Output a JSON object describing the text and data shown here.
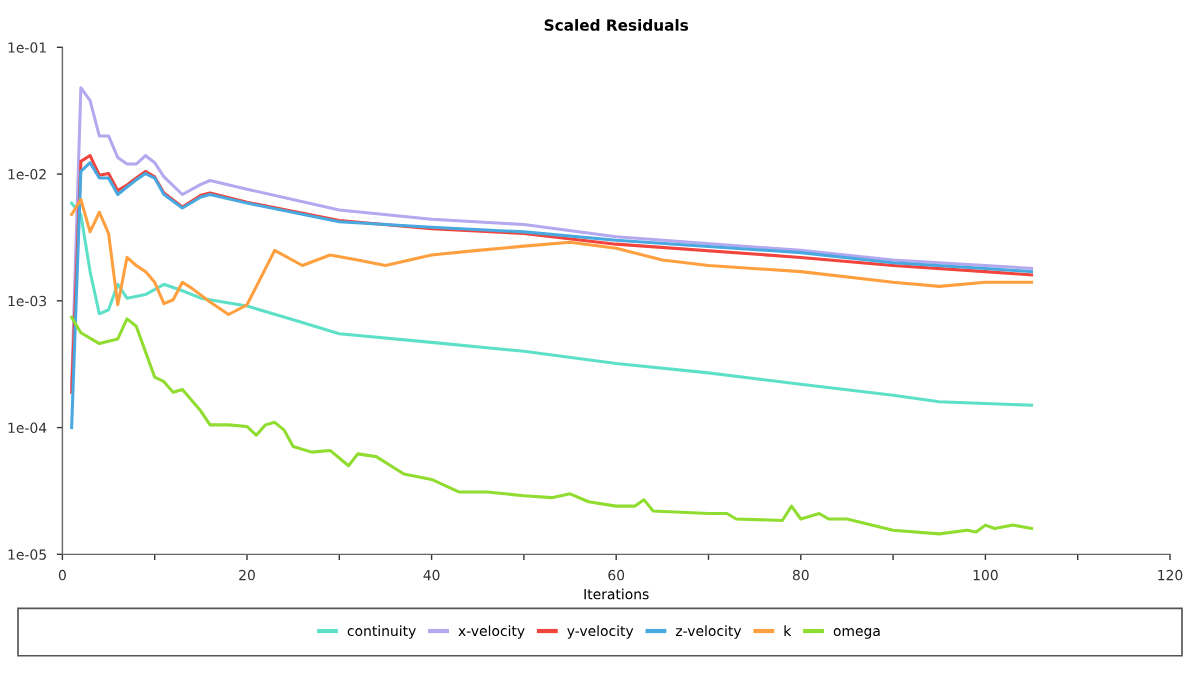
{
  "chart_data": {
    "type": "line",
    "title": "Scaled Residuals",
    "xlabel": "Iterations",
    "xlim": [
      0,
      120
    ],
    "xticks": [
      0,
      {
        "value": 10,
        "label": null
      },
      20,
      {
        "value": 30,
        "label": null
      },
      40,
      {
        "value": 50,
        "label": null
      },
      60,
      {
        "value": 70,
        "label": null
      },
      80,
      {
        "value": 90,
        "label": null
      },
      100,
      {
        "value": 110,
        "label": null
      },
      120
    ],
    "log": true,
    "ylim": [
      1e-05,
      0.1
    ],
    "yticks": [
      {
        "value": 1e-05,
        "label": "1e-05"
      },
      {
        "value": 0.0001,
        "label": "1e-04"
      },
      {
        "value": 0.001,
        "label": "1e-03"
      },
      {
        "value": 0.01,
        "label": "1e-02"
      },
      {
        "value": 0.1,
        "label": "1e-01"
      }
    ],
    "grid": false,
    "legend": "bottom",
    "marker": "none",
    "line_style": "solid",
    "series": [
      {
        "name": "continuity",
        "color": "#5ee0c8",
        "x": [
          1,
          2,
          3,
          4,
          5,
          6,
          7,
          9,
          11,
          13,
          15,
          20,
          25,
          30,
          40,
          50,
          60,
          70,
          80,
          90,
          95,
          105
        ],
        "values": [
          0.0059,
          0.0048,
          0.0017,
          0.00079,
          0.00085,
          0.00135,
          0.00105,
          0.00112,
          0.00135,
          0.0012,
          0.00105,
          0.00091,
          0.00071,
          0.00055,
          0.00047,
          0.0004,
          0.00032,
          0.00027,
          0.00022,
          0.00018,
          0.00016,
          0.00015
        ]
      },
      {
        "name": "x-velocity",
        "color": "#b4a8ee",
        "x": [
          1,
          2,
          3,
          4,
          5,
          6,
          7,
          8,
          9,
          10,
          11,
          13,
          15,
          16,
          20,
          30,
          40,
          50,
          60,
          80,
          90,
          100,
          105
        ],
        "values": [
          0.00021,
          0.048,
          0.038,
          0.02,
          0.02,
          0.0135,
          0.012,
          0.012,
          0.014,
          0.0123,
          0.0095,
          0.0069,
          0.0083,
          0.0089,
          0.0076,
          0.0052,
          0.0044,
          0.004,
          0.0032,
          0.0025,
          0.0021,
          0.0019,
          0.0018
        ]
      },
      {
        "name": "y-velocity",
        "color": "#f0443c",
        "x": [
          1,
          2,
          3,
          4,
          5,
          6,
          7,
          8,
          9,
          10,
          11,
          13,
          15,
          16,
          20,
          30,
          40,
          50,
          60,
          80,
          90,
          100,
          105
        ],
        "values": [
          0.00019,
          0.0126,
          0.014,
          0.0098,
          0.0101,
          0.0074,
          0.0082,
          0.0093,
          0.0105,
          0.0095,
          0.0071,
          0.0055,
          0.0068,
          0.0071,
          0.006,
          0.0043,
          0.0037,
          0.0034,
          0.0028,
          0.0022,
          0.0019,
          0.0017,
          0.0016
        ]
      },
      {
        "name": "z-velocity",
        "color": "#4aa8e0",
        "x": [
          1,
          2,
          3,
          4,
          5,
          6,
          7,
          8,
          9,
          10,
          11,
          13,
          15,
          16,
          20,
          30,
          40,
          50,
          60,
          80,
          90,
          100,
          105
        ],
        "values": [
          0.0001,
          0.0105,
          0.0123,
          0.0093,
          0.0093,
          0.0069,
          0.0079,
          0.009,
          0.0101,
          0.0093,
          0.0069,
          0.0054,
          0.0066,
          0.0069,
          0.0059,
          0.0042,
          0.0038,
          0.0035,
          0.003,
          0.0024,
          0.002,
          0.0018,
          0.0017
        ]
      },
      {
        "name": "k",
        "color": "#ffa040",
        "x": [
          1,
          2,
          3,
          4,
          5,
          6,
          7,
          8,
          9,
          10,
          11,
          12,
          13,
          14,
          16,
          18,
          20,
          23,
          26,
          29,
          32,
          35,
          40,
          45,
          50,
          55,
          60,
          65,
          70,
          80,
          90,
          95,
          100,
          105
        ],
        "values": [
          0.0048,
          0.0063,
          0.0035,
          0.005,
          0.0034,
          0.00093,
          0.0022,
          0.0019,
          0.0017,
          0.0014,
          0.00095,
          0.00102,
          0.0014,
          0.00126,
          0.00098,
          0.00078,
          0.00093,
          0.0025,
          0.0019,
          0.0023,
          0.0021,
          0.0019,
          0.0023,
          0.0025,
          0.0027,
          0.0029,
          0.0026,
          0.0021,
          0.0019,
          0.0017,
          0.0014,
          0.0013,
          0.0014,
          0.0014
        ]
      },
      {
        "name": "omega",
        "color": "#90dc30",
        "x": [
          1,
          2,
          4,
          6,
          7,
          8,
          10,
          11,
          12,
          13,
          15,
          16,
          18,
          20,
          21,
          22,
          23,
          24,
          25,
          27,
          29,
          31,
          32,
          34,
          37,
          40,
          43,
          46,
          50,
          53,
          55,
          57,
          60,
          62,
          63,
          64,
          70,
          72,
          73,
          78,
          79,
          80,
          82,
          83,
          85,
          90,
          95,
          98,
          99,
          100,
          101,
          103,
          105
        ],
        "values": [
          0.00074,
          0.00056,
          0.00046,
          0.0005,
          0.00072,
          0.00063,
          0.00025,
          0.00023,
          0.00019,
          0.0002,
          0.000135,
          0.000105,
          0.000105,
          0.000102,
          8.7e-05,
          0.000105,
          0.00011,
          9.6e-05,
          7.1e-05,
          6.4e-05,
          6.6e-05,
          5e-05,
          6.2e-05,
          5.9e-05,
          4.3e-05,
          3.9e-05,
          3.1e-05,
          3.1e-05,
          2.9e-05,
          2.8e-05,
          3e-05,
          2.6e-05,
          2.4e-05,
          2.4e-05,
          2.7e-05,
          2.2e-05,
          2.1e-05,
          2.1e-05,
          1.9e-05,
          1.85e-05,
          2.4e-05,
          1.9e-05,
          2.1e-05,
          1.9e-05,
          1.9e-05,
          1.55e-05,
          1.45e-05,
          1.55e-05,
          1.5e-05,
          1.7e-05,
          1.6e-05,
          1.7e-05,
          1.6e-05
        ]
      }
    ]
  }
}
